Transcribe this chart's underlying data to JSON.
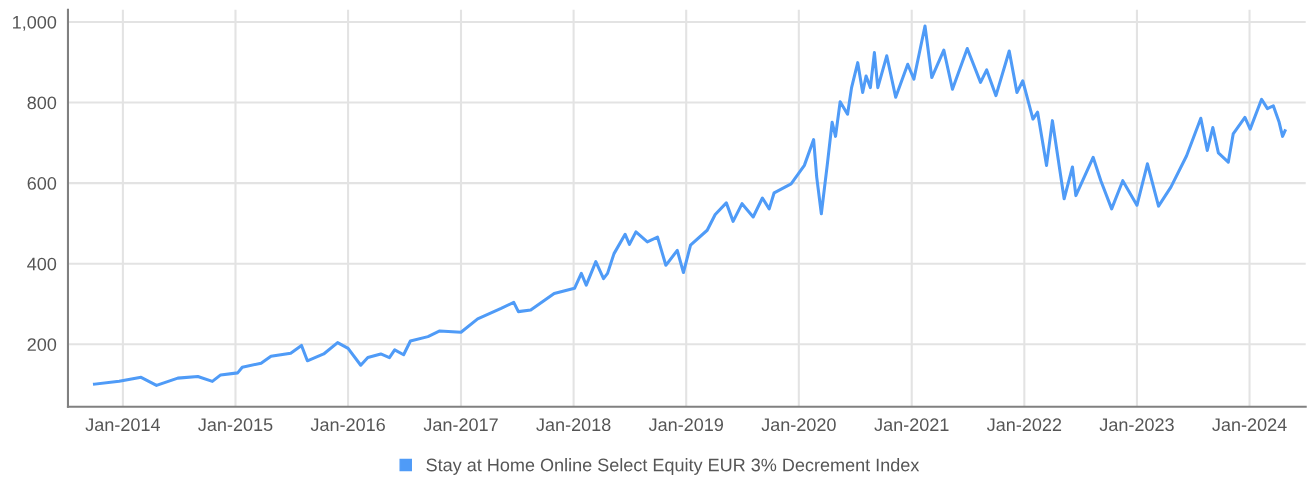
{
  "chart_data": {
    "type": "line",
    "x": [
      "2013-10-01",
      "2013-12-20",
      "2014-03-01",
      "2014-04-20",
      "2014-06-28",
      "2014-09-01",
      "2014-10-18",
      "2014-11-14",
      "2015-01-08",
      "2015-01-23",
      "2015-03-25",
      "2015-04-26",
      "2015-06-29",
      "2015-08-03",
      "2015-08-22",
      "2015-10-14",
      "2015-11-28",
      "2016-01-01",
      "2016-02-11",
      "2016-03-05",
      "2016-04-16",
      "2016-05-14",
      "2016-05-31",
      "2016-06-29",
      "2016-07-21",
      "2016-09-16",
      "2016-10-24",
      "2017-01-01",
      "2017-02-24",
      "2017-05-11",
      "2017-06-21",
      "2017-07-06",
      "2017-08-15",
      "2017-10-30",
      "2018-01-04",
      "2018-01-26",
      "2018-02-11",
      "2018-03-14",
      "2018-04-08",
      "2018-04-21",
      "2018-05-12",
      "2018-06-17",
      "2018-07-01",
      "2018-07-22",
      "2018-08-28",
      "2018-09-30",
      "2018-10-27",
      "2018-12-03",
      "2018-12-23",
      "2019-01-15",
      "2019-03-10",
      "2019-04-05",
      "2019-05-11",
      "2019-06-02",
      "2019-07-01",
      "2019-08-06",
      "2019-09-05",
      "2019-09-27",
      "2019-10-13",
      "2019-12-07",
      "2020-01-19",
      "2020-02-18",
      "2020-02-28",
      "2020-03-14",
      "2020-04-02",
      "2020-04-18",
      "2020-04-29",
      "2020-05-14",
      "2020-06-07",
      "2020-06-20",
      "2020-07-10",
      "2020-07-26",
      "2020-08-06",
      "2020-08-20",
      "2020-09-02",
      "2020-09-13",
      "2020-10-12",
      "2020-11-10",
      "2020-12-19",
      "2021-01-08",
      "2021-02-13",
      "2021-03-07",
      "2021-04-15",
      "2021-05-13",
      "2021-06-30",
      "2021-08-12",
      "2021-09-01",
      "2021-10-01",
      "2021-11-13",
      "2021-12-08",
      "2021-12-27",
      "2022-01-29",
      "2022-02-13",
      "2022-03-14",
      "2022-04-02",
      "2022-05-10",
      "2022-06-06",
      "2022-06-17",
      "2022-08-12",
      "2022-09-06",
      "2022-10-11",
      "2022-11-16",
      "2023-01-01",
      "2023-02-04",
      "2023-03-12",
      "2023-04-21",
      "2023-06-11",
      "2023-07-27",
      "2023-08-17",
      "2023-09-04",
      "2023-09-22",
      "2023-10-24",
      "2023-11-09",
      "2023-12-17",
      "2024-01-03",
      "2024-02-09",
      "2024-02-28",
      "2024-03-18",
      "2024-04-06",
      "2024-04-17",
      "2024-04-25"
    ],
    "series": [
      {
        "name": "Stay at Home Online Select Equity EUR 3% Decrement Index",
        "color": "#4f9bf7",
        "values": [
          101,
          108,
          118,
          98,
          116,
          120,
          108,
          124,
          129,
          143,
          153,
          170,
          178,
          197,
          159,
          176,
          204,
          190,
          148,
          167,
          176,
          167,
          186,
          174,
          208,
          219,
          233,
          230,
          263,
          289,
          304,
          281,
          285,
          326,
          339,
          376,
          347,
          405,
          363,
          376,
          425,
          473,
          448,
          479,
          454,
          466,
          396,
          433,
          378,
          446,
          483,
          522,
          551,
          505,
          549,
          516,
          563,
          536,
          576,
          598,
          644,
          708,
          615,
          524,
          644,
          751,
          716,
          802,
          771,
          837,
          899,
          825,
          866,
          837,
          924,
          837,
          916,
          813,
          895,
          858,
          990,
          862,
          930,
          833,
          934,
          850,
          881,
          817,
          928,
          825,
          854,
          759,
          776,
          644,
          755,
          561,
          640,
          569,
          664,
          606,
          536,
          606,
          545,
          648,
          543,
          590,
          668,
          761,
          681,
          738,
          675,
          652,
          722,
          763,
          734,
          808,
          785,
          792,
          751,
          716,
          730
        ]
      }
    ],
    "xlim": [
      "2013-07-07",
      "2024-07-01"
    ],
    "xticks": [
      {
        "value": "2014-01-01",
        "label": "Jan-2014"
      },
      {
        "value": "2015-01-01",
        "label": "Jan-2015"
      },
      {
        "value": "2016-01-01",
        "label": "Jan-2016"
      },
      {
        "value": "2017-01-01",
        "label": "Jan-2017"
      },
      {
        "value": "2018-01-01",
        "label": "Jan-2018"
      },
      {
        "value": "2019-01-01",
        "label": "Jan-2019"
      },
      {
        "value": "2020-01-01",
        "label": "Jan-2020"
      },
      {
        "value": "2021-01-01",
        "label": "Jan-2021"
      },
      {
        "value": "2022-01-01",
        "label": "Jan-2022"
      },
      {
        "value": "2023-01-01",
        "label": "Jan-2023"
      },
      {
        "value": "2024-01-01",
        "label": "Jan-2024"
      }
    ],
    "ylim": [
      45,
      1030
    ],
    "yticks": [
      200,
      400,
      600,
      800,
      {
        "value": 1000,
        "label": "1,000"
      }
    ],
    "grid": true,
    "legend": "bottom",
    "marker": "none",
    "line_style": "solid"
  }
}
